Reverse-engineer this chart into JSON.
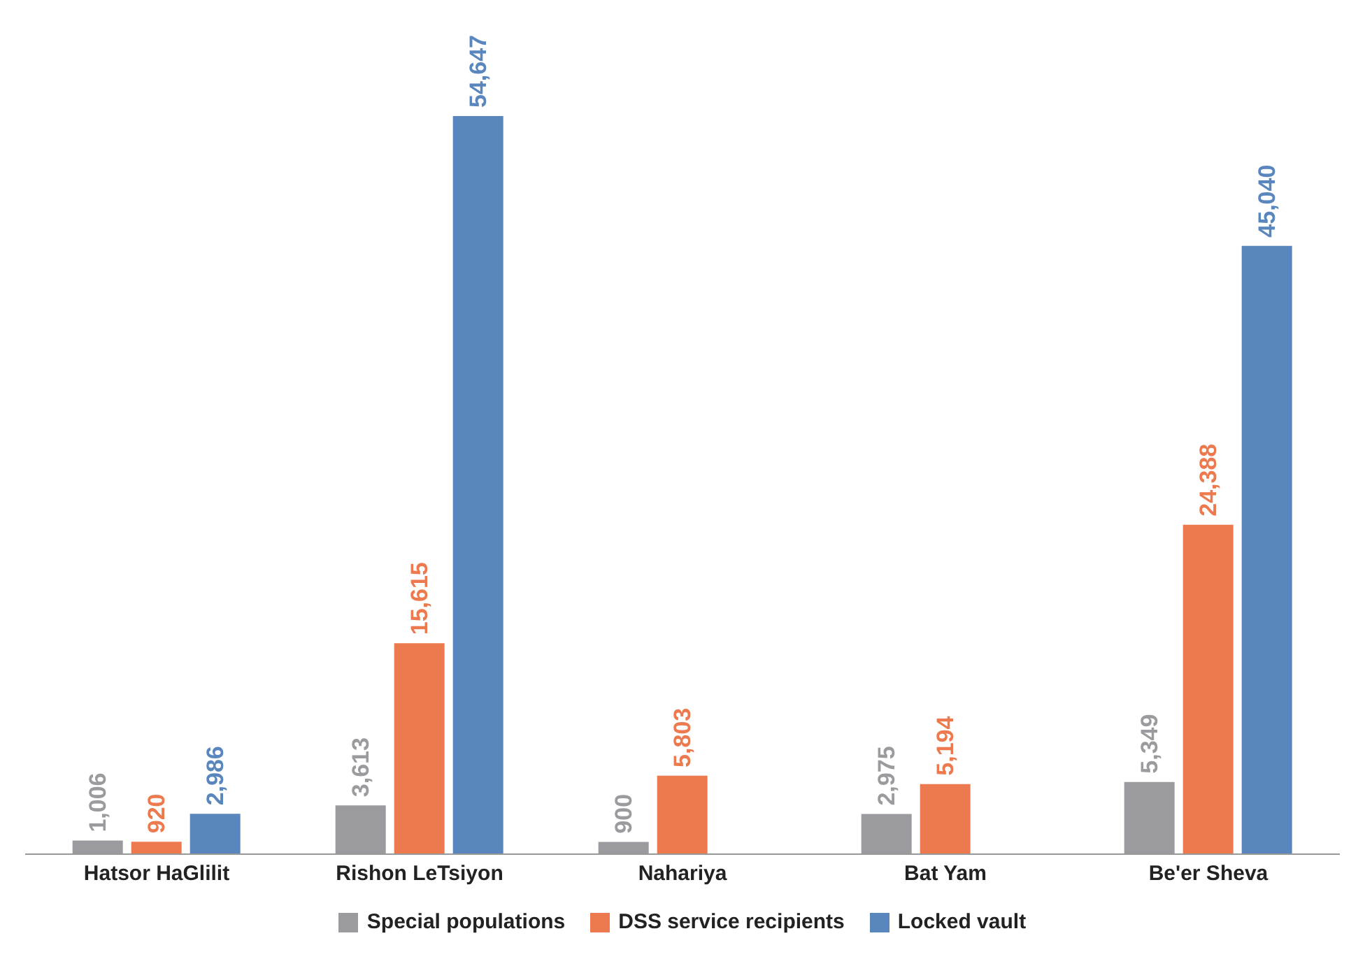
{
  "chart_data": {
    "type": "bar",
    "categories": [
      "Hatsor HaGlilit",
      "Rishon LeTsiyon",
      "Nahariya",
      "Bat Yam",
      "Be'er Sheva"
    ],
    "series": [
      {
        "name": "Special populations",
        "color": "#9b9b9f",
        "values": [
          1006,
          3613,
          900,
          2975,
          5349
        ],
        "value_labels": [
          "1,006",
          "3,613",
          "900",
          "2,975",
          "5,349"
        ]
      },
      {
        "name": "DSS service recipients",
        "color": "#ec7a4e",
        "values": [
          920,
          15615,
          5803,
          5194,
          24388
        ],
        "value_labels": [
          "920",
          "15,615",
          "5,803",
          "5,194",
          "24,388"
        ]
      },
      {
        "name": "Locked vault",
        "color": "#5a86be",
        "values": [
          2986,
          54647,
          null,
          null,
          45040
        ],
        "value_labels": [
          "2,986",
          "54,647",
          null,
          null,
          "45,040"
        ]
      }
    ],
    "legend": "bottom"
  }
}
